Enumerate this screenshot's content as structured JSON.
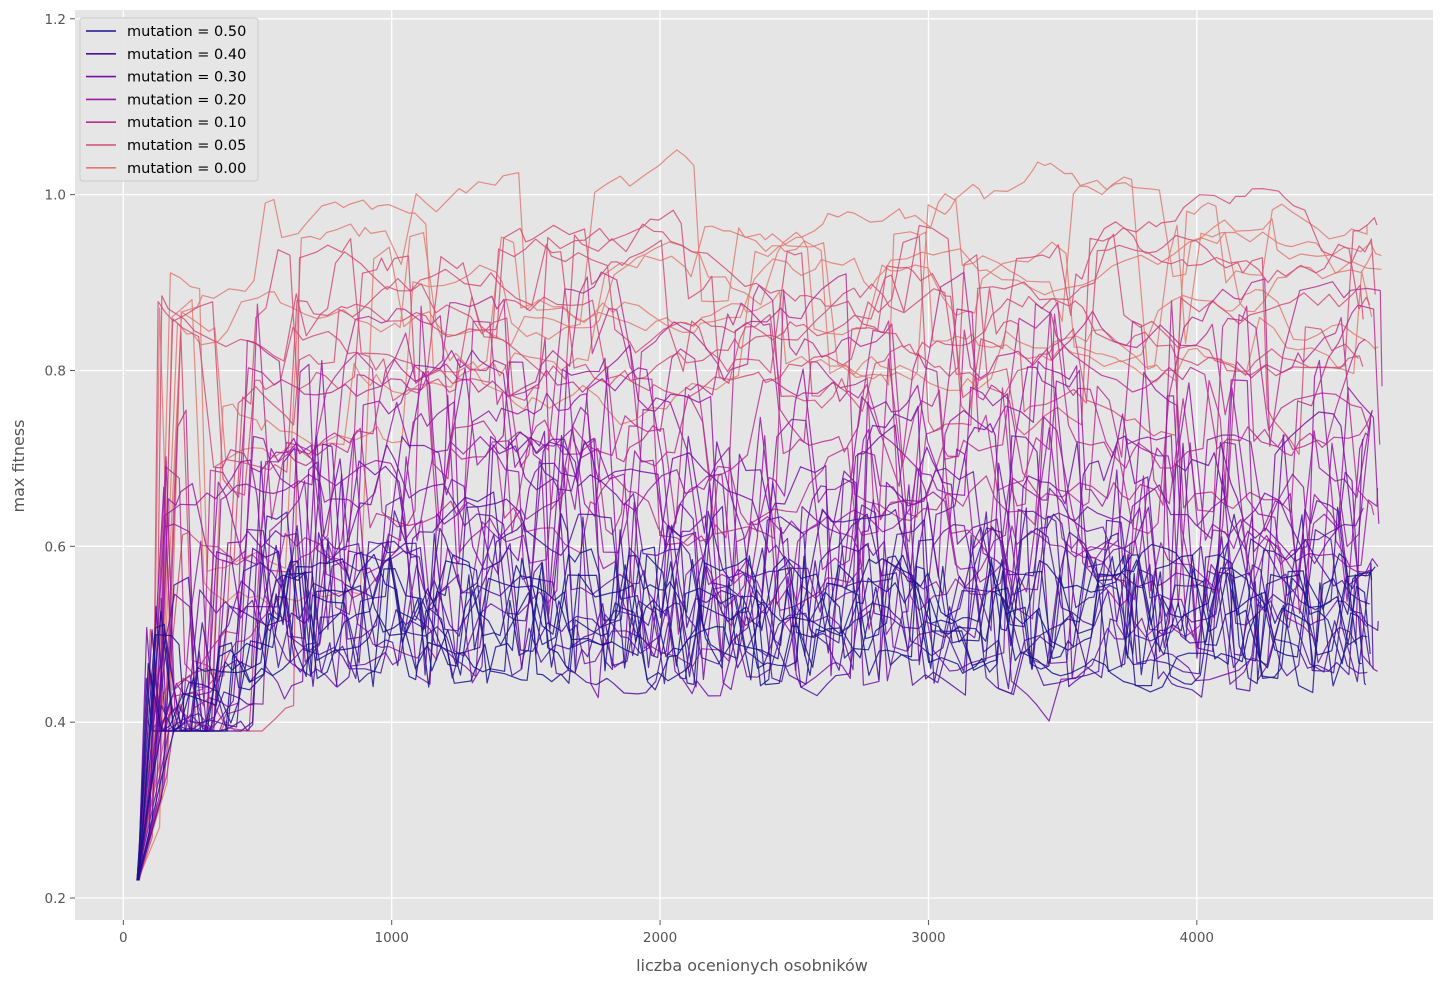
{
  "chart_data": {
    "type": "line",
    "title": "",
    "xlabel": "liczba ocenionych osobników",
    "ylabel": "max fitness",
    "xlim": [
      -180,
      4880
    ],
    "ylim": [
      0.175,
      1.21
    ],
    "xticks": [
      0,
      1000,
      2000,
      3000,
      4000
    ],
    "yticks": [
      0.2,
      0.4,
      0.6,
      0.8,
      1.0,
      1.2
    ],
    "xtick_labels": [
      "0",
      "1000",
      "2000",
      "3000",
      "4000"
    ],
    "ytick_labels": [
      "0.2",
      "0.4",
      "0.6",
      "0.8",
      "1.0",
      "1.2"
    ],
    "grid": true,
    "legend_position": "top-left",
    "runs_per_series": 6,
    "series": [
      {
        "name": "mutation = 0.50",
        "color": "#1a148c",
        "start": 0.22,
        "plateau": 0.51,
        "spread": 0.06,
        "jump": 0.55
      },
      {
        "name": "mutation = 0.40",
        "color": "#4b10a0",
        "start": 0.22,
        "plateau": 0.53,
        "spread": 0.08,
        "jump": 0.5
      },
      {
        "name": "mutation = 0.30",
        "color": "#7510a8",
        "start": 0.22,
        "plateau": 0.57,
        "spread": 0.11,
        "jump": 0.45
      },
      {
        "name": "mutation = 0.20",
        "color": "#9a1aa6",
        "start": 0.22,
        "plateau": 0.64,
        "spread": 0.12,
        "jump": 0.35
      },
      {
        "name": "mutation = 0.10",
        "color": "#b8308f",
        "start": 0.22,
        "plateau": 0.74,
        "spread": 0.11,
        "jump": 0.25
      },
      {
        "name": "mutation = 0.05",
        "color": "#d24f76",
        "start": 0.22,
        "plateau": 0.84,
        "spread": 0.09,
        "jump": 0.18
      },
      {
        "name": "mutation = 0.00",
        "color": "#e07b72",
        "start": 0.22,
        "plateau": 0.89,
        "spread": 0.08,
        "jump": 0.12
      }
    ]
  }
}
